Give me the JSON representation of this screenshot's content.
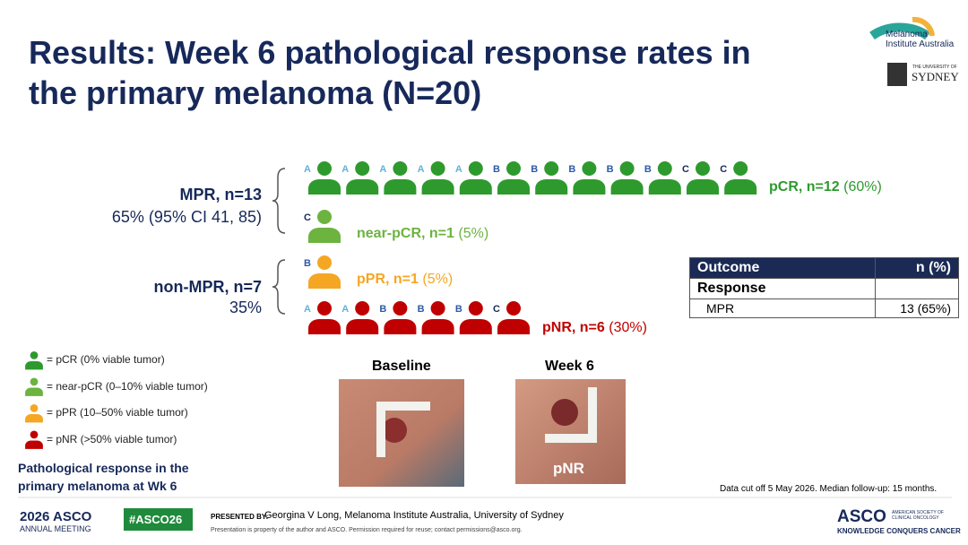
{
  "header": {
    "title_lines": [
      "Results: Week 6 pathological response rates in",
      "the primary melanoma (N=20)"
    ],
    "logo_mia": [
      "Melanoma",
      "Institute Australia"
    ],
    "logo_usyd_small": "THE UNIVERSITY OF",
    "logo_usyd": "SYDNEY"
  },
  "groups": [
    {
      "label": "MPR, n=13",
      "sub": "65% (95% CI 41, 85)"
    },
    {
      "label": "non-MPR, n=7",
      "sub": "35%"
    }
  ],
  "rows": [
    {
      "label": "pCR, n=12",
      "pct": "(60%)",
      "color": "#2e9a2e",
      "patients": [
        "A",
        "A",
        "A",
        "A",
        "A",
        "B",
        "B",
        "B",
        "B",
        "B",
        "C",
        "C"
      ]
    },
    {
      "label": "near-pCR, n=1",
      "pct": "(5%)",
      "color": "#6cb33f",
      "patients": [
        "C"
      ]
    },
    {
      "label": "pPR, n=1",
      "pct": "(5%)",
      "color": "#f5a623",
      "patients": [
        "B"
      ]
    },
    {
      "label": "pNR, n=6",
      "pct": "(30%)",
      "color": "#c00000",
      "patients": [
        "A",
        "A",
        "B",
        "B",
        "B",
        "C"
      ]
    }
  ],
  "legend": [
    "= pCR (0% viable tumor)",
    "= near-pCR (0–10% viable tumor)",
    "= pPR (10–50% viable tumor)",
    "= pNR (>50% viable tumor)"
  ],
  "caption": [
    "Pathological response in the",
    "primary melanoma at Wk 6"
  ],
  "photos": [
    {
      "title": "Baseline"
    },
    {
      "title": "Week 6",
      "label": "pNR"
    }
  ],
  "table": {
    "header": [
      "Outcome",
      "n (%)"
    ],
    "rows": [
      [
        "Response",
        ""
      ],
      [
        "MPR",
        "13 (65%)"
      ]
    ]
  },
  "footnote": "Data cut off 5 May 2026. Median follow-up: 15 months.",
  "footer": {
    "meeting_year": "2026",
    "meeting_org": "ASCO",
    "meeting_sub": "ANNUAL MEETING",
    "hashtag": "#ASCO26",
    "presented_by": "PRESENTED BY:",
    "presenter": "Georgina V Long, Melanoma Institute Australia, University of Sydney",
    "notice": "Presentation is property of the author and ASCO. Permission required for reuse; contact permissions@asco.org.",
    "asco": "ASCO",
    "asco_name": "AMERICAN SOCIETY OF CLINICAL ONCOLOGY",
    "asco_tag": "KNOWLEDGE CONQUERS CANCER"
  }
}
